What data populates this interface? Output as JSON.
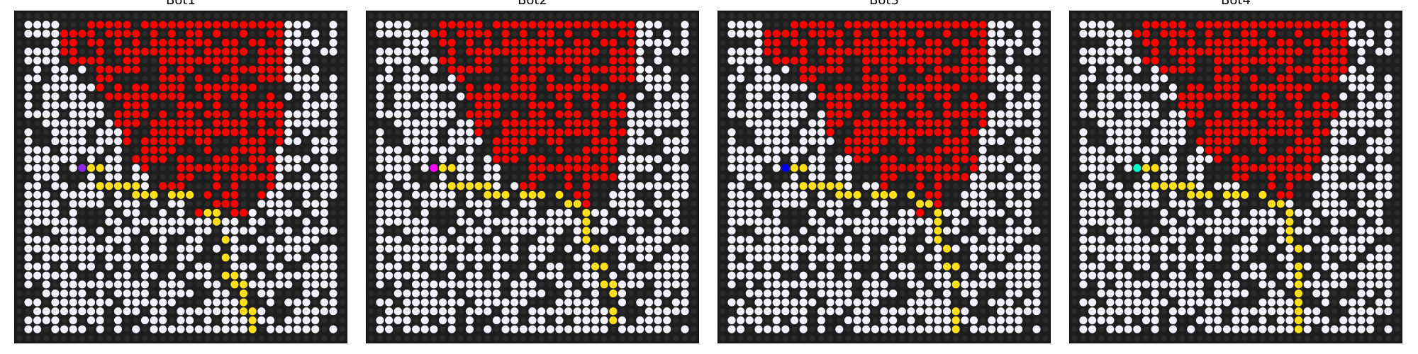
{
  "panels": [
    {
      "title": "Bot1",
      "bot_color": "#8a2be2",
      "bot": [
        7,
        17
      ],
      "path": [
        [
          7,
          17
        ],
        [
          8,
          17
        ],
        [
          9,
          17
        ],
        [
          9,
          18
        ],
        [
          9,
          19
        ],
        [
          10,
          19
        ],
        [
          11,
          19
        ],
        [
          12,
          19
        ],
        [
          13,
          19
        ],
        [
          13,
          20
        ],
        [
          14,
          20
        ],
        [
          15,
          20
        ],
        [
          16,
          20
        ],
        [
          17,
          20
        ],
        [
          18,
          20
        ],
        [
          19,
          20
        ],
        [
          20,
          20
        ],
        [
          20,
          21
        ],
        [
          21,
          21
        ],
        [
          21,
          22
        ],
        [
          22,
          22
        ],
        [
          22,
          23
        ],
        [
          22,
          24
        ],
        [
          22,
          25
        ],
        [
          23,
          25
        ],
        [
          23,
          26
        ],
        [
          23,
          27
        ],
        [
          23,
          28
        ],
        [
          23,
          29
        ],
        [
          24,
          29
        ],
        [
          24,
          30
        ],
        [
          25,
          30
        ],
        [
          25,
          31
        ],
        [
          25,
          32
        ],
        [
          25,
          33
        ],
        [
          26,
          33
        ],
        [
          26,
          34
        ],
        [
          26,
          35
        ]
      ],
      "red_rows": [
        [
          6,
          29
        ],
        [
          5,
          29
        ],
        [
          5,
          29
        ],
        [
          5,
          29
        ],
        [
          6,
          29
        ],
        [
          8,
          29
        ],
        [
          8,
          29
        ],
        [
          9,
          29
        ],
        [
          10,
          29
        ],
        [
          11,
          29
        ],
        [
          11,
          29
        ],
        [
          11,
          29
        ],
        [
          12,
          29
        ],
        [
          12,
          29
        ],
        [
          12,
          28
        ],
        [
          13,
          28
        ],
        [
          14,
          28
        ],
        [
          15,
          28
        ],
        [
          16,
          28
        ],
        [
          17,
          27
        ],
        [
          19,
          26
        ],
        [
          20,
          25
        ]
      ]
    },
    {
      "title": "Bot2",
      "bot_color": "#ff00ff",
      "bot": [
        7,
        17
      ],
      "path": [
        [
          7,
          17
        ],
        [
          8,
          17
        ],
        [
          9,
          17
        ],
        [
          9,
          18
        ],
        [
          9,
          19
        ],
        [
          10,
          19
        ],
        [
          11,
          19
        ],
        [
          12,
          19
        ],
        [
          13,
          19
        ],
        [
          13,
          20
        ],
        [
          14,
          20
        ],
        [
          15,
          20
        ],
        [
          16,
          20
        ],
        [
          17,
          20
        ],
        [
          18,
          20
        ],
        [
          19,
          20
        ],
        [
          20,
          20
        ],
        [
          21,
          20
        ],
        [
          22,
          20
        ],
        [
          22,
          21
        ],
        [
          23,
          21
        ],
        [
          23,
          22
        ],
        [
          24,
          22
        ],
        [
          24,
          23
        ],
        [
          24,
          24
        ],
        [
          24,
          25
        ],
        [
          25,
          25
        ],
        [
          25,
          26
        ],
        [
          25,
          27
        ],
        [
          25,
          28
        ],
        [
          26,
          28
        ],
        [
          26,
          29
        ],
        [
          26,
          30
        ],
        [
          27,
          30
        ],
        [
          27,
          31
        ],
        [
          27,
          32
        ],
        [
          27,
          33
        ],
        [
          27,
          34
        ],
        [
          27,
          35
        ]
      ],
      "red_rows": [
        [
          8,
          29
        ],
        [
          7,
          29
        ],
        [
          7,
          29
        ],
        [
          7,
          29
        ],
        [
          8,
          29
        ],
        [
          9,
          29
        ],
        [
          10,
          29
        ],
        [
          10,
          29
        ],
        [
          11,
          29
        ],
        [
          11,
          28
        ],
        [
          11,
          28
        ],
        [
          12,
          28
        ],
        [
          12,
          28
        ],
        [
          13,
          28
        ],
        [
          13,
          27
        ],
        [
          14,
          27
        ],
        [
          15,
          27
        ],
        [
          16,
          27
        ],
        [
          17,
          26
        ],
        [
          19,
          25
        ],
        [
          20,
          24
        ]
      ]
    },
    {
      "title": "Bot3",
      "bot_color": "#0000ff",
      "bot": [
        7,
        17
      ],
      "path": [
        [
          7,
          17
        ],
        [
          8,
          17
        ],
        [
          9,
          17
        ],
        [
          9,
          18
        ],
        [
          9,
          19
        ],
        [
          10,
          19
        ],
        [
          11,
          19
        ],
        [
          12,
          19
        ],
        [
          13,
          19
        ],
        [
          13,
          20
        ],
        [
          14,
          20
        ],
        [
          15,
          20
        ],
        [
          16,
          20
        ],
        [
          17,
          20
        ],
        [
          18,
          20
        ],
        [
          19,
          20
        ],
        [
          20,
          20
        ],
        [
          21,
          20
        ],
        [
          22,
          20
        ],
        [
          22,
          21
        ],
        [
          23,
          21
        ],
        [
          23,
          22
        ],
        [
          24,
          22
        ],
        [
          24,
          23
        ],
        [
          24,
          24
        ],
        [
          24,
          25
        ],
        [
          25,
          25
        ],
        [
          25,
          26
        ],
        [
          25,
          27
        ],
        [
          25,
          28
        ],
        [
          26,
          28
        ],
        [
          26,
          29
        ],
        [
          26,
          30
        ],
        [
          26,
          31
        ],
        [
          26,
          32
        ],
        [
          26,
          33
        ],
        [
          26,
          34
        ],
        [
          26,
          35
        ]
      ],
      "red_rows": [
        [
          6,
          29
        ],
        [
          5,
          29
        ],
        [
          5,
          29
        ],
        [
          5,
          29
        ],
        [
          6,
          29
        ],
        [
          8,
          29
        ],
        [
          9,
          29
        ],
        [
          10,
          29
        ],
        [
          11,
          29
        ],
        [
          11,
          29
        ],
        [
          12,
          29
        ],
        [
          12,
          29
        ],
        [
          12,
          28
        ],
        [
          13,
          28
        ],
        [
          14,
          28
        ],
        [
          15,
          28
        ],
        [
          16,
          28
        ],
        [
          17,
          27
        ],
        [
          18,
          27
        ],
        [
          20,
          26
        ],
        [
          21,
          25
        ],
        [
          22,
          24
        ]
      ]
    },
    {
      "title": "Bot4",
      "bot_color": "#00ffcc",
      "bot": [
        7,
        17
      ],
      "path": [
        [
          7,
          17
        ],
        [
          8,
          17
        ],
        [
          9,
          17
        ],
        [
          9,
          18
        ],
        [
          9,
          19
        ],
        [
          10,
          19
        ],
        [
          11,
          19
        ],
        [
          12,
          19
        ],
        [
          13,
          19
        ],
        [
          13,
          20
        ],
        [
          14,
          20
        ],
        [
          15,
          20
        ],
        [
          16,
          20
        ],
        [
          17,
          20
        ],
        [
          18,
          20
        ],
        [
          19,
          20
        ],
        [
          20,
          20
        ],
        [
          21,
          20
        ],
        [
          22,
          20
        ],
        [
          22,
          21
        ],
        [
          23,
          21
        ],
        [
          23,
          22
        ],
        [
          24,
          22
        ],
        [
          24,
          23
        ],
        [
          24,
          24
        ],
        [
          24,
          25
        ],
        [
          25,
          25
        ],
        [
          25,
          26
        ],
        [
          25,
          27
        ],
        [
          25,
          28
        ],
        [
          25,
          29
        ],
        [
          25,
          30
        ],
        [
          25,
          31
        ],
        [
          25,
          32
        ],
        [
          25,
          33
        ],
        [
          25,
          34
        ],
        [
          25,
          35
        ]
      ],
      "red_rows": [
        [
          8,
          30
        ],
        [
          7,
          30
        ],
        [
          7,
          30
        ],
        [
          7,
          30
        ],
        [
          8,
          30
        ],
        [
          10,
          30
        ],
        [
          11,
          29
        ],
        [
          12,
          29
        ],
        [
          12,
          29
        ],
        [
          12,
          29
        ],
        [
          13,
          29
        ],
        [
          13,
          28
        ],
        [
          13,
          28
        ],
        [
          14,
          28
        ],
        [
          15,
          27
        ],
        [
          16,
          27
        ],
        [
          17,
          26
        ],
        [
          18,
          26
        ],
        [
          19,
          25
        ],
        [
          21,
          24
        ]
      ]
    }
  ],
  "grid": {
    "size": 37,
    "colors": {
      "background": "#1e1e1e",
      "wall": "#2b2b2b",
      "open": "#f2f0fa",
      "red": "#ff0000",
      "path": "#ffe01a"
    }
  }
}
